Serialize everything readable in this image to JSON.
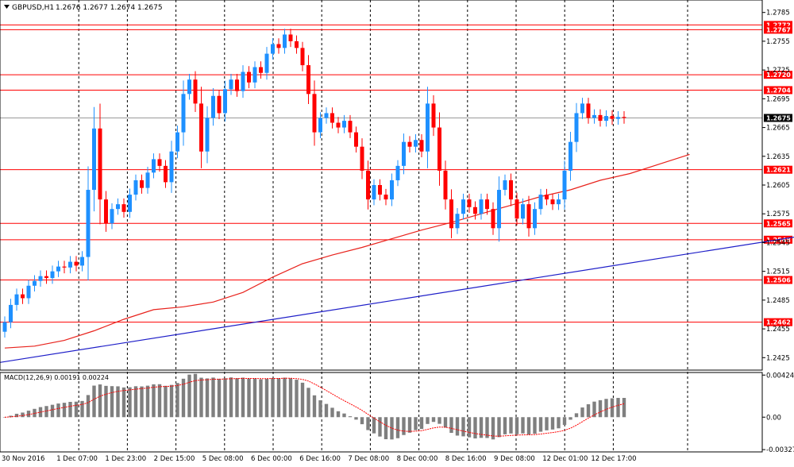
{
  "header": {
    "symbol": "GBPUSD,H1",
    "ohlc": "1.2676 1.2677 1.2674 1.2675"
  },
  "indicator_label": "MACD(12,26,9) 0.00191 0.00224",
  "colors": {
    "background": "#ffffff",
    "bull_candle": "#1e90ff",
    "bear_candle": "#ff0000",
    "level_line": "#ff0000",
    "ma_line": "#e8221c",
    "trend_line": "#1e1ec8",
    "grid": "#000000",
    "macd_hist": "#7f7f7f",
    "macd_signal": "#ff0000",
    "price_marker": "#000000"
  },
  "chart_data": {
    "type": "candlestick",
    "instrument": "GBPUSD",
    "timeframe": "H1",
    "price_axis": {
      "ticks": [
        "1.2785",
        "1.2755",
        "1.2725",
        "1.2695",
        "1.2665",
        "1.2635",
        "1.2605",
        "1.2575",
        "1.2545",
        "1.2515",
        "1.2485",
        "1.2455",
        "1.2425"
      ],
      "range": [
        1.2412,
        1.2798
      ]
    },
    "time_axis": {
      "labels": [
        "30 Nov 2016",
        "1 Dec 07:00",
        "1 Dec 23:00",
        "2 Dec 15:00",
        "5 Dec 08:00",
        "6 Dec 00:00",
        "6 Dec 16:00",
        "7 Dec 08:00",
        "8 Dec 00:00",
        "8 Dec 16:00",
        "9 Dec 08:00",
        "12 Dec 01:00",
        "12 Dec 17:00"
      ]
    },
    "horizontal_levels": [
      {
        "label": "1.2772",
        "value": 1.2772
      },
      {
        "label": "1.2767",
        "value": 1.2767
      },
      {
        "label": "1.2720",
        "value": 1.272
      },
      {
        "label": "1.2704",
        "value": 1.2704
      },
      {
        "label": "1.2621",
        "value": 1.2621
      },
      {
        "label": "1.2565",
        "value": 1.2565
      },
      {
        "label": "1.2548",
        "value": 1.2548
      },
      {
        "label": "1.2506",
        "value": 1.2506
      },
      {
        "label": "1.2462",
        "value": 1.2462
      }
    ],
    "current_price": {
      "label": "1.2675",
      "value": 1.2675
    },
    "moving_average": [
      [
        0,
        1.2435
      ],
      [
        5,
        1.2437
      ],
      [
        10,
        1.2443
      ],
      [
        15,
        1.2453
      ],
      [
        20,
        1.2465
      ],
      [
        25,
        1.2475
      ],
      [
        30,
        1.2478
      ],
      [
        35,
        1.2483
      ],
      [
        40,
        1.2493
      ],
      [
        45,
        1.2509
      ],
      [
        50,
        1.2523
      ],
      [
        55,
        1.2532
      ],
      [
        60,
        1.254
      ],
      [
        65,
        1.2549
      ],
      [
        70,
        1.2558
      ],
      [
        75,
        1.2566
      ],
      [
        80,
        1.2575
      ],
      [
        85,
        1.2584
      ],
      [
        90,
        1.2593
      ],
      [
        95,
        1.26
      ],
      [
        100,
        1.261
      ],
      [
        105,
        1.2617
      ],
      [
        110,
        1.2627
      ],
      [
        115,
        1.2637
      ]
    ],
    "trend_line": {
      "from": [
        0,
        1.242
      ],
      "to": [
        139,
        1.2557
      ]
    },
    "candles_open_close": [
      [
        1.2452,
        1.2462
      ],
      [
        1.2462,
        1.248
      ],
      [
        1.248,
        1.2491
      ],
      [
        1.2491,
        1.2487
      ],
      [
        1.2487,
        1.25
      ],
      [
        1.25,
        1.2505
      ],
      [
        1.2505,
        1.251
      ],
      [
        1.251,
        1.2508
      ],
      [
        1.2508,
        1.2515
      ],
      [
        1.2515,
        1.252
      ],
      [
        1.252,
        1.2519
      ],
      [
        1.2519,
        1.2525
      ],
      [
        1.2525,
        1.2521
      ],
      [
        1.2521,
        1.253
      ],
      [
        1.253,
        1.26
      ],
      [
        1.26,
        1.2664
      ],
      [
        1.2664,
        1.259
      ],
      [
        1.259,
        1.2565
      ],
      [
        1.2565,
        1.258
      ],
      [
        1.258,
        1.2585
      ],
      [
        1.2585,
        1.2577
      ],
      [
        1.2577,
        1.2595
      ],
      [
        1.2595,
        1.261
      ],
      [
        1.261,
        1.2602
      ],
      [
        1.2602,
        1.2618
      ],
      [
        1.2618,
        1.2632
      ],
      [
        1.2632,
        1.2625
      ],
      [
        1.2625,
        1.2608
      ],
      [
        1.2608,
        1.264
      ],
      [
        1.264,
        1.266
      ],
      [
        1.266,
        1.27
      ],
      [
        1.27,
        1.2715
      ],
      [
        1.2715,
        1.269
      ],
      [
        1.269,
        1.264
      ],
      [
        1.264,
        1.2675
      ],
      [
        1.2675,
        1.2698
      ],
      [
        1.2698,
        1.268
      ],
      [
        1.268,
        1.2705
      ],
      [
        1.2705,
        1.2715
      ],
      [
        1.2715,
        1.2703
      ],
      [
        1.2703,
        1.2723
      ],
      [
        1.2723,
        1.2712
      ],
      [
        1.2712,
        1.2728
      ],
      [
        1.2728,
        1.2722
      ],
      [
        1.2722,
        1.2742
      ],
      [
        1.2742,
        1.2752
      ],
      [
        1.2752,
        1.2748
      ],
      [
        1.2748,
        1.2762
      ],
      [
        1.2762,
        1.2755
      ],
      [
        1.2755,
        1.2748
      ],
      [
        1.2748,
        1.273
      ],
      [
        1.273,
        1.27
      ],
      [
        1.27,
        1.266
      ],
      [
        1.266,
        1.2675
      ],
      [
        1.2675,
        1.268
      ],
      [
        1.268,
        1.267
      ],
      [
        1.267,
        1.2665
      ],
      [
        1.2665,
        1.2672
      ],
      [
        1.2672,
        1.266
      ],
      [
        1.266,
        1.2645
      ],
      [
        1.2645,
        1.262
      ],
      [
        1.262,
        1.259
      ],
      [
        1.259,
        1.2605
      ],
      [
        1.2605,
        1.2595
      ],
      [
        1.2595,
        1.259
      ],
      [
        1.259,
        1.261
      ],
      [
        1.261,
        1.2625
      ],
      [
        1.2625,
        1.265
      ],
      [
        1.265,
        1.2645
      ],
      [
        1.2645,
        1.2652
      ],
      [
        1.2652,
        1.264
      ],
      [
        1.264,
        1.269
      ],
      [
        1.269,
        1.2665
      ],
      [
        1.2665,
        1.262
      ],
      [
        1.262,
        1.259
      ],
      [
        1.259,
        1.256
      ],
      [
        1.256,
        1.2575
      ],
      [
        1.2575,
        1.259
      ],
      [
        1.259,
        1.2582
      ],
      [
        1.2582,
        1.2575
      ],
      [
        1.2575,
        1.259
      ],
      [
        1.259,
        1.258
      ],
      [
        1.258,
        1.256
      ],
      [
        1.256,
        1.26
      ],
      [
        1.26,
        1.261
      ],
      [
        1.261,
        1.259
      ],
      [
        1.259,
        1.257
      ],
      [
        1.257,
        1.2585
      ],
      [
        1.2585,
        1.256
      ],
      [
        1.256,
        1.258
      ],
      [
        1.258,
        1.2595
      ],
      [
        1.2595,
        1.259
      ],
      [
        1.259,
        1.2585
      ],
      [
        1.2585,
        1.259
      ],
      [
        1.259,
        1.262
      ],
      [
        1.262,
        1.265
      ],
      [
        1.265,
        1.268
      ],
      [
        1.268,
        1.269
      ],
      [
        1.269,
        1.2675
      ],
      [
        1.2675,
        1.2678
      ],
      [
        1.2678,
        1.2672
      ],
      [
        1.2672,
        1.2677
      ],
      [
        1.2677,
        1.2674
      ],
      [
        1.2674,
        1.2676
      ],
      [
        1.2676,
        1.2675
      ]
    ],
    "macd": {
      "label": "MACD(12,26,9) 0.00191 0.00224",
      "axis_ticks": [
        "0.00424",
        "0.00",
        "-0.00327"
      ],
      "range": [
        -0.0035,
        0.0045
      ]
    }
  }
}
